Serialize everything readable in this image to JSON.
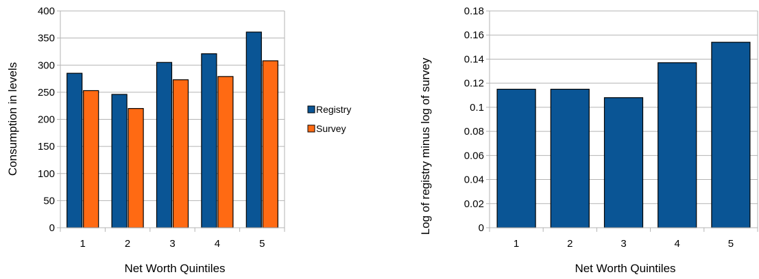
{
  "chart_data": [
    {
      "type": "bar",
      "categories": [
        "1",
        "2",
        "3",
        "4",
        "5"
      ],
      "series": [
        {
          "name": "Registry",
          "color": "#0a5595",
          "values": [
            285,
            246,
            305,
            321,
            361
          ]
        },
        {
          "name": "Survey",
          "color": "#ff6a13",
          "values": [
            253,
            220,
            273,
            279,
            308
          ]
        }
      ],
      "xlabel": "Net Worth Quintiles",
      "ylabel": "Consumption in levels",
      "ylim": [
        0,
        400
      ],
      "yticks": [
        "0",
        "50",
        "100",
        "150",
        "200",
        "250",
        "300",
        "350",
        "400"
      ],
      "grid": true,
      "legend_position": "right"
    },
    {
      "type": "bar",
      "categories": [
        "1",
        "2",
        "3",
        "4",
        "5"
      ],
      "series": [
        {
          "color": "#0a5595",
          "values": [
            0.115,
            0.115,
            0.108,
            0.137,
            0.154
          ]
        }
      ],
      "xlabel": "Net Worth Quintiles",
      "ylabel": "Log of registry minus log of survey",
      "ylim": [
        0,
        0.18
      ],
      "yticks": [
        "0",
        "0.02",
        "0.04",
        "0.06",
        "0.08",
        "0.1",
        "0.12",
        "0.14",
        "0.16",
        "0.18"
      ],
      "grid": true
    }
  ]
}
